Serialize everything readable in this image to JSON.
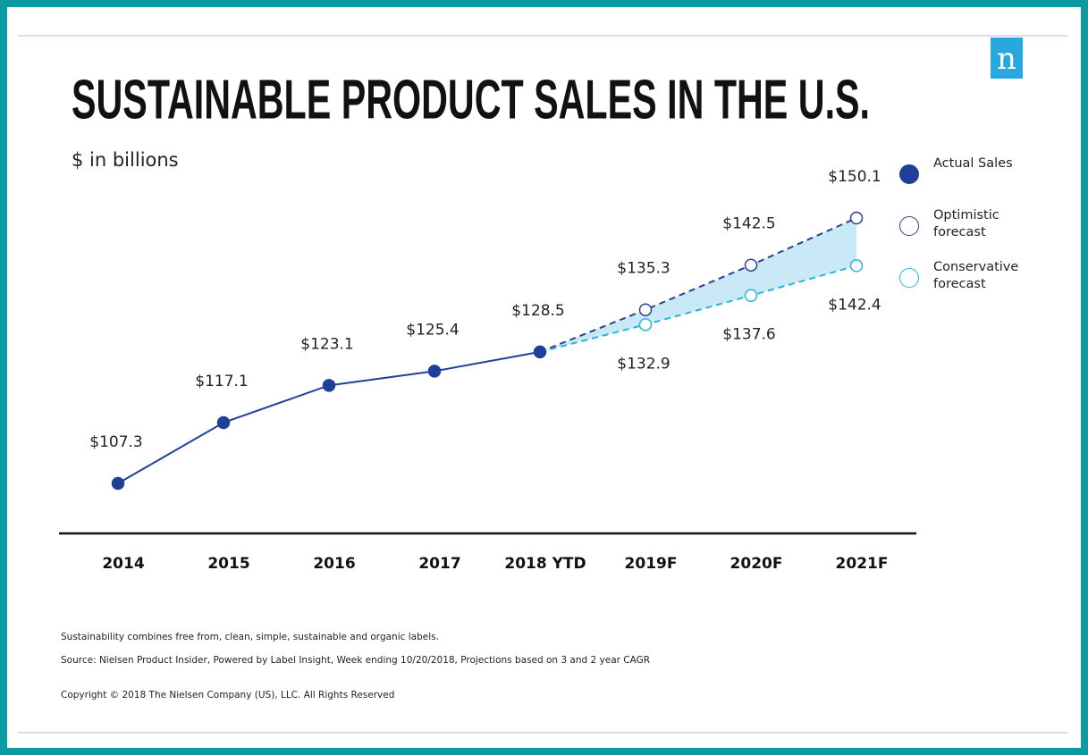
{
  "chart_data": {
    "type": "line",
    "title": "SUSTAINABLE PRODUCT SALES IN THE U.S.",
    "subtitle": "$ in billions",
    "logo": "n",
    "categories": [
      "2014",
      "2015",
      "2016",
      "2017",
      "2018 YTD",
      "2019F",
      "2020F",
      "2021F"
    ],
    "series": [
      {
        "name": "Actual Sales",
        "color": "#1f3f99",
        "style": "solid",
        "values": [
          107.3,
          117.1,
          123.1,
          125.4,
          128.5,
          null,
          null,
          null
        ],
        "value_labels": [
          "$107.3",
          "$117.1",
          "$123.1",
          "$125.4",
          "$128.5",
          null,
          null,
          null
        ]
      },
      {
        "name": "Optimistic forecast",
        "color": "#2e3f8f",
        "style": "dashed",
        "values": [
          null,
          null,
          null,
          null,
          128.5,
          135.3,
          142.5,
          150.1
        ],
        "value_labels": [
          null,
          null,
          null,
          null,
          null,
          "$135.3",
          "$142.5",
          "$150.1"
        ]
      },
      {
        "name": "Conservative forecast",
        "color": "#29b3df",
        "style": "dashed",
        "values": [
          null,
          null,
          null,
          null,
          128.5,
          132.9,
          137.6,
          142.4
        ],
        "value_labels": [
          null,
          null,
          null,
          null,
          null,
          "$132.9",
          "$137.6",
          "$142.4"
        ]
      }
    ],
    "band_color": "#bfe5f5",
    "notes": [
      "Sustainability combines free from, clean, simple, sustainable and organic labels.",
      "Source: Nielsen Product Insider, Powered by Label Insight, Week ending 10/20/2018, Projections based on 3 and 2 year CAGR",
      "Copyright © 2018 The Nielsen Company (US), LLC. All Rights Reserved"
    ]
  }
}
